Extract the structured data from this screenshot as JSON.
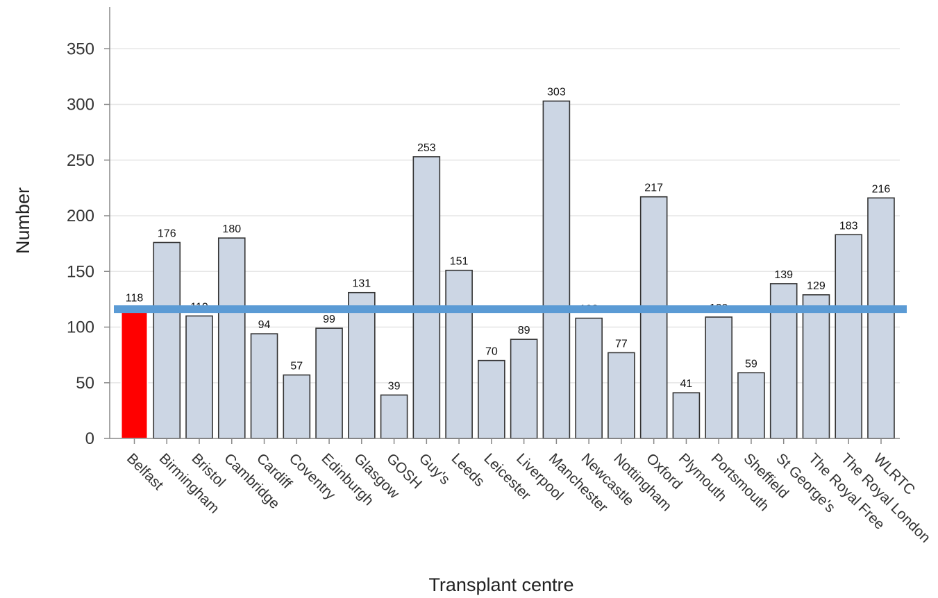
{
  "chart_data": {
    "type": "bar",
    "title": "",
    "xlabel": "Transplant centre",
    "ylabel": "Number",
    "ylim": [
      0,
      375
    ],
    "yticks": [
      0,
      50,
      100,
      150,
      200,
      250,
      300,
      350
    ],
    "grid": true,
    "categories": [
      "Belfast",
      "Birmingham",
      "Bristol",
      "Cambridge",
      "Cardiff",
      "Coventry",
      "Edinburgh",
      "Glasgow",
      "GOSH",
      "Guy's",
      "Leeds",
      "Leicester",
      "Liverpool",
      "Manchester",
      "Newcastle",
      "Nottingham",
      "Oxford",
      "Plymouth",
      "Portsmouth",
      "Sheffield",
      "St George's",
      "The Royal Free",
      "The Royal London",
      "WLRTC"
    ],
    "values": [
      118,
      176,
      110,
      180,
      94,
      57,
      99,
      131,
      39,
      253,
      151,
      70,
      89,
      303,
      108,
      77,
      217,
      41,
      109,
      59,
      139,
      129,
      183,
      216
    ],
    "value_labels": [
      "118",
      "176",
      "110",
      "180",
      "94",
      "57",
      "99",
      "131",
      "39",
      "253",
      "151",
      "70",
      "89",
      "303",
      "108",
      "77",
      "217",
      "41",
      "109",
      "59",
      "139",
      "129",
      "183",
      "216"
    ],
    "highlight_category": "Belfast",
    "reference_line": 118,
    "colors": {
      "bar": "#ccd6e4",
      "bar_stroke": "#333333",
      "highlight": "#ff0000",
      "reference_line": "#5b9bd5",
      "grid": "#e6e6e6",
      "axis": "#888888"
    }
  }
}
